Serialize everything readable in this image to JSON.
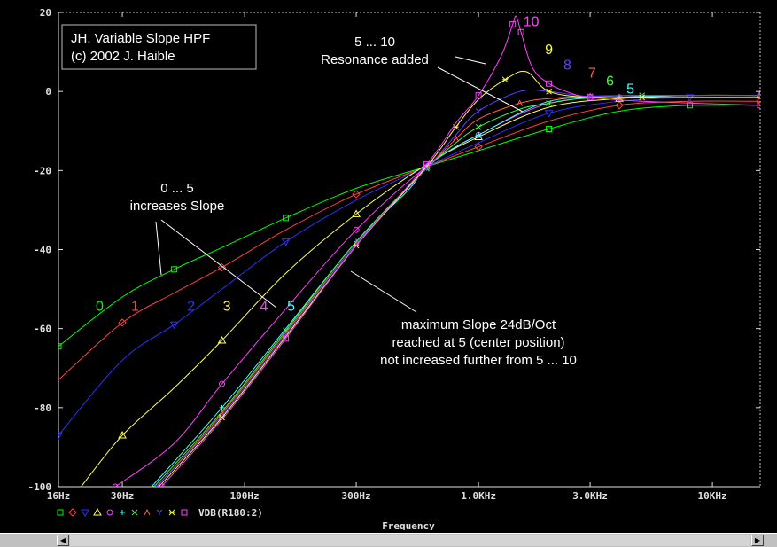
{
  "chart_data": {
    "type": "line",
    "xscale": "log",
    "xlim": [
      16,
      16000
    ],
    "ylim": [
      -100,
      20
    ],
    "grid": false,
    "xlabel": "Frequency",
    "ylabel": "",
    "xticks": [
      {
        "value": 16,
        "label": "16Hz"
      },
      {
        "value": 30,
        "label": "30Hz"
      },
      {
        "value": 100,
        "label": "100Hz"
      },
      {
        "value": 300,
        "label": "300Hz"
      },
      {
        "value": 1000,
        "label": "1.0KHz"
      },
      {
        "value": 3000,
        "label": "3.0KHz"
      },
      {
        "value": 10000,
        "label": "10KHz"
      }
    ],
    "yticks": [
      {
        "value": 20,
        "label": "20"
      },
      {
        "value": 0,
        "label": "0"
      },
      {
        "value": -20,
        "label": "-20"
      },
      {
        "value": -40,
        "label": "-40"
      },
      {
        "value": -60,
        "label": "-60"
      },
      {
        "value": -80,
        "label": "-80"
      },
      {
        "value": -100,
        "label": "-100"
      }
    ],
    "series": [
      {
        "label": "0",
        "color": "#00ff00",
        "marker": "square",
        "points": [
          [
            16,
            -64.5
          ],
          [
            30,
            -52
          ],
          [
            50,
            -45
          ],
          [
            80,
            -39.5
          ],
          [
            150,
            -32
          ],
          [
            300,
            -24.5
          ],
          [
            600,
            -19
          ],
          [
            1000,
            -15
          ],
          [
            2000,
            -9.5
          ],
          [
            4000,
            -5
          ],
          [
            8000,
            -3.5
          ],
          [
            16000,
            -3.5
          ]
        ]
      },
      {
        "label": "1",
        "color": "#ff4040",
        "marker": "diamond",
        "points": [
          [
            16,
            -73
          ],
          [
            30,
            -58.5
          ],
          [
            50,
            -51
          ],
          [
            80,
            -44.5
          ],
          [
            150,
            -35
          ],
          [
            300,
            -26
          ],
          [
            600,
            -19
          ],
          [
            1000,
            -14
          ],
          [
            2000,
            -7.5
          ],
          [
            4000,
            -3.5
          ],
          [
            8000,
            -2.5
          ],
          [
            16000,
            -2.5
          ]
        ]
      },
      {
        "label": "2",
        "color": "#3030ff",
        "marker": "triangle-down",
        "points": [
          [
            16,
            -87
          ],
          [
            30,
            -68
          ],
          [
            50,
            -59
          ],
          [
            80,
            -50
          ],
          [
            150,
            -38
          ],
          [
            300,
            -27.5
          ],
          [
            600,
            -19
          ],
          [
            1000,
            -13
          ],
          [
            2000,
            -5.5
          ],
          [
            4000,
            -2.5
          ],
          [
            8000,
            -1.5
          ],
          [
            16000,
            -1.5
          ]
        ]
      },
      {
        "label": "3",
        "color": "#ffff60",
        "marker": "triangle",
        "points": [
          [
            20,
            -100
          ],
          [
            30,
            -87
          ],
          [
            50,
            -75
          ],
          [
            80,
            -63
          ],
          [
            150,
            -46
          ],
          [
            300,
            -31
          ],
          [
            600,
            -18.5
          ],
          [
            1000,
            -11.5
          ],
          [
            2000,
            -4
          ],
          [
            4000,
            -1.8
          ],
          [
            8000,
            -1
          ],
          [
            16000,
            -1
          ]
        ]
      },
      {
        "label": "4",
        "color": "#ff40ff",
        "marker": "circle",
        "points": [
          [
            28,
            -100
          ],
          [
            50,
            -89
          ],
          [
            80,
            -74
          ],
          [
            150,
            -55
          ],
          [
            300,
            -35
          ],
          [
            600,
            -19
          ],
          [
            1000,
            -11
          ],
          [
            2000,
            -3
          ],
          [
            4000,
            -1.5
          ],
          [
            8000,
            -1
          ],
          [
            16000,
            -1
          ]
        ]
      },
      {
        "label": "5",
        "color": "#40ffff",
        "marker": "plus",
        "points": [
          [
            40,
            -100
          ],
          [
            80,
            -80
          ],
          [
            150,
            -60
          ],
          [
            300,
            -38
          ],
          [
            500,
            -25
          ],
          [
            600,
            -19
          ],
          [
            800,
            -14
          ],
          [
            1000,
            -11
          ],
          [
            2000,
            -2.5
          ],
          [
            4000,
            -1.5
          ],
          [
            8000,
            -1
          ],
          [
            16000,
            -1
          ]
        ]
      },
      {
        "label": "6",
        "color": "#40ff40",
        "marker": "cross",
        "points": [
          [
            41,
            -100
          ],
          [
            80,
            -81
          ],
          [
            150,
            -60.5
          ],
          [
            300,
            -38
          ],
          [
            600,
            -19.5
          ],
          [
            800,
            -13
          ],
          [
            1000,
            -9
          ],
          [
            1500,
            -4.5
          ],
          [
            2000,
            -3
          ],
          [
            3000,
            -1.5
          ],
          [
            5000,
            -1
          ],
          [
            16000,
            -1
          ]
        ]
      },
      {
        "label": "7",
        "color": "#ff6040",
        "marker": "caret",
        "points": [
          [
            42,
            -100
          ],
          [
            80,
            -81.5
          ],
          [
            150,
            -61
          ],
          [
            300,
            -38.5
          ],
          [
            600,
            -19.5
          ],
          [
            800,
            -12
          ],
          [
            1000,
            -7
          ],
          [
            1500,
            -3
          ],
          [
            2000,
            -1.8
          ],
          [
            3000,
            -1.2
          ],
          [
            5000,
            -1
          ],
          [
            16000,
            -1
          ]
        ]
      },
      {
        "label": "8",
        "color": "#6040ff",
        "marker": "y",
        "points": [
          [
            42,
            -100
          ],
          [
            80,
            -82
          ],
          [
            150,
            -61.5
          ],
          [
            300,
            -38.5
          ],
          [
            600,
            -19.5
          ],
          [
            800,
            -11
          ],
          [
            1000,
            -5
          ],
          [
            1500,
            0
          ],
          [
            2000,
            0
          ],
          [
            2500,
            -0.8
          ],
          [
            3000,
            -1.2
          ],
          [
            5000,
            -1
          ],
          [
            16000,
            -1
          ]
        ]
      },
      {
        "label": "9",
        "color": "#ffff40",
        "marker": "asterisk",
        "points": [
          [
            43,
            -100
          ],
          [
            80,
            -82.5
          ],
          [
            150,
            -62
          ],
          [
            300,
            -39
          ],
          [
            600,
            -19
          ],
          [
            800,
            -9
          ],
          [
            1000,
            -2
          ],
          [
            1300,
            3
          ],
          [
            1600,
            5
          ],
          [
            2000,
            0
          ],
          [
            3000,
            -1.5
          ],
          [
            5000,
            -1.5
          ],
          [
            16000,
            -1.5
          ]
        ]
      },
      {
        "label": "10",
        "color": "#ff40ff",
        "marker": "square",
        "points": [
          [
            44,
            -100
          ],
          [
            80,
            -83
          ],
          [
            150,
            -62.5
          ],
          [
            300,
            -39
          ],
          [
            600,
            -18.5
          ],
          [
            800,
            -8
          ],
          [
            1000,
            -1
          ],
          [
            1250,
            9
          ],
          [
            1400,
            17
          ],
          [
            1450,
            19
          ],
          [
            1520,
            15
          ],
          [
            1700,
            6
          ],
          [
            2000,
            2
          ],
          [
            2500,
            -0.5
          ],
          [
            3000,
            -1.5
          ],
          [
            5000,
            -2.5
          ],
          [
            16000,
            -3.5
          ]
        ]
      }
    ],
    "curve_labels": [
      {
        "text": "0",
        "x": 24,
        "y": -55.5,
        "color": "#00ff00"
      },
      {
        "text": "1",
        "x": 34,
        "y": -55.5,
        "color": "#ff4040"
      },
      {
        "text": "2",
        "x": 59,
        "y": -55.5,
        "color": "#3030ff"
      },
      {
        "text": "3",
        "x": 84,
        "y": -55.5,
        "color": "#ffff60"
      },
      {
        "text": "4",
        "x": 121,
        "y": -55.5,
        "color": "#ff40ff"
      },
      {
        "text": "5",
        "x": 158,
        "y": -55.5,
        "color": "#40ffff"
      },
      {
        "text": "10",
        "x": 1680,
        "y": 16.5,
        "color": "#ff40ff"
      },
      {
        "text": "9",
        "x": 2000,
        "y": 9.5,
        "color": "#ffff40"
      },
      {
        "text": "8",
        "x": 2400,
        "y": 5.5,
        "color": "#6040ff"
      },
      {
        "text": "7",
        "x": 3060,
        "y": 3.5,
        "color": "#ff6040"
      },
      {
        "text": "6",
        "x": 3650,
        "y": 1.5,
        "color": "#40ff40"
      },
      {
        "text": "5",
        "x": 4460,
        "y": -0.5,
        "color": "#40ffff"
      }
    ],
    "annotations": [
      {
        "id": "title",
        "lines": [
          "JH. Variable Slope HPF",
          "(c) 2002 J. Haible"
        ]
      },
      {
        "id": "resonance",
        "lines": [
          "5 ... 10",
          "Resonance added"
        ]
      },
      {
        "id": "slope",
        "lines": [
          "0 ... 5",
          "increases Slope"
        ]
      },
      {
        "id": "maxslope",
        "lines": [
          "maximum Slope 24dB/Oct",
          "reached at 5 (center position)",
          "not increased further from 5 ... 10"
        ]
      }
    ],
    "legend_trace": "VDB(R180:2)"
  },
  "ui": {
    "scroll_left_glyph": "◀",
    "scroll_right_glyph": "▶"
  }
}
